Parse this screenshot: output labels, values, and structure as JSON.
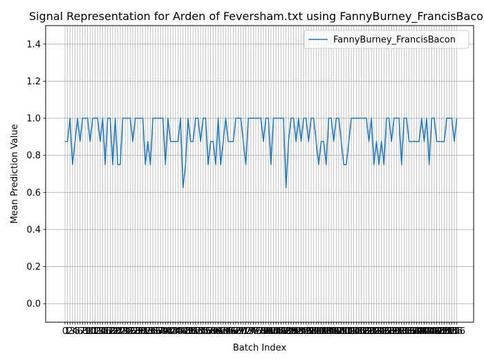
{
  "chart_data": {
    "type": "line",
    "title": "Signal Representation for Arden of Feversham.txt using FannyBurney_FrancisBacon",
    "xlabel": "Batch Index",
    "ylabel": "Mean Prediction Value",
    "xlim": [
      -7.7,
      162.7
    ],
    "ylim": [
      -0.1,
      1.5
    ],
    "yticks": [
      0.0,
      0.2,
      0.4,
      0.6,
      0.8,
      1.0,
      1.2,
      1.4
    ],
    "ytick_labels": [
      "0.0",
      "0.2",
      "0.4",
      "0.6",
      "0.8",
      "1.0",
      "1.2",
      "1.4"
    ],
    "grid": true,
    "legend_position": "upper right",
    "line_color": "#1f77b4",
    "series": [
      {
        "name": "FannyBurney_FrancisBacon",
        "x_start": 0,
        "values": [
          0.875,
          0.875,
          1.0,
          0.75,
          0.875,
          1.0,
          0.875,
          1.0,
          1.0,
          1.0,
          0.875,
          1.0,
          1.0,
          1.0,
          0.875,
          1.0,
          0.75,
          1.0,
          1.0,
          0.75,
          1.0,
          0.75,
          0.75,
          1.0,
          1.0,
          1.0,
          1.0,
          0.875,
          1.0,
          1.0,
          1.0,
          1.0,
          0.75,
          0.875,
          0.75,
          1.0,
          1.0,
          1.0,
          1.0,
          1.0,
          0.75,
          1.0,
          0.875,
          0.875,
          0.875,
          0.875,
          1.0,
          0.625,
          0.75,
          1.0,
          0.875,
          0.875,
          1.0,
          1.0,
          0.875,
          1.0,
          1.0,
          0.75,
          0.875,
          0.875,
          0.75,
          1.0,
          0.75,
          0.875,
          1.0,
          0.875,
          0.875,
          0.875,
          1.0,
          1.0,
          1.0,
          0.875,
          0.75,
          1.0,
          1.0,
          1.0,
          1.0,
          1.0,
          1.0,
          0.875,
          1.0,
          1.0,
          0.75,
          1.0,
          1.0,
          1.0,
          1.0,
          1.0,
          0.625,
          0.875,
          1.0,
          1.0,
          0.875,
          1.0,
          0.875,
          1.0,
          1.0,
          0.875,
          1.0,
          1.0,
          0.875,
          0.75,
          0.875,
          0.875,
          0.75,
          1.0,
          1.0,
          0.875,
          1.0,
          1.0,
          0.875,
          0.75,
          0.75,
          0.875,
          1.0,
          1.0,
          1.0,
          1.0,
          1.0,
          1.0,
          1.0,
          0.875,
          1.0,
          0.75,
          0.875,
          0.75,
          0.875,
          0.75,
          1.0,
          1.0,
          0.875,
          1.0,
          1.0,
          1.0,
          0.75,
          1.0,
          1.0,
          0.875,
          0.875,
          0.875,
          0.875,
          0.875,
          1.0,
          0.875,
          1.0,
          0.75,
          1.0,
          1.0,
          0.875,
          0.875,
          0.875,
          0.875,
          1.0,
          1.0,
          1.0,
          0.875,
          1.0
        ]
      }
    ]
  }
}
